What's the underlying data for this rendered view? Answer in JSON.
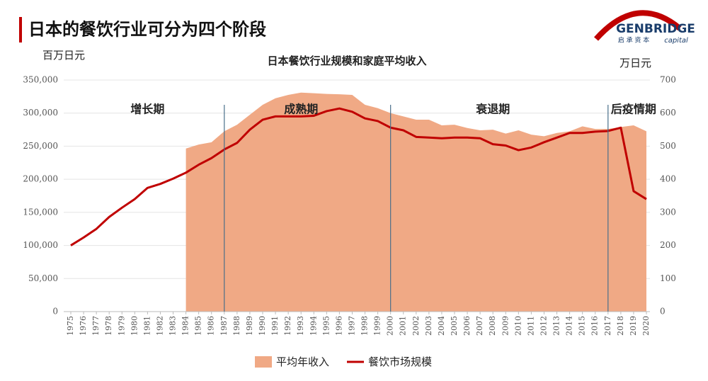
{
  "header": {
    "title": "日本的餐饮行业可分为四个阶段",
    "logo": "GENBRIDGE",
    "logo_sub": "启 承 资 本",
    "logo_sub2": "capital"
  },
  "chart_data": {
    "type": "line",
    "title": "日本餐饮行业规模和家庭平均收入",
    "y_label": "百万日元",
    "y2_label": "万日元",
    "categories": [
      "1975",
      "1976",
      "1977",
      "1978",
      "1979",
      "1980",
      "1981",
      "1982",
      "1983",
      "1984",
      "1985",
      "1986",
      "1987",
      "1988",
      "1989",
      "1990",
      "1991",
      "1992",
      "1993",
      "1994",
      "1995",
      "1996",
      "1997",
      "1998",
      "1999",
      "2000",
      "2001",
      "2002",
      "2003",
      "2004",
      "2005",
      "2006",
      "2007",
      "2008",
      "2009",
      "2010",
      "2011",
      "2012",
      "2013",
      "2014",
      "2015",
      "2016",
      "2017",
      "2018",
      "2019",
      "2020"
    ],
    "series": [
      {
        "name": "平均年收入",
        "type": "area",
        "axis": "y2",
        "color": "#f0a985",
        "values": [
          null,
          null,
          null,
          null,
          null,
          null,
          null,
          null,
          null,
          493,
          505,
          512,
          545,
          565,
          595,
          625,
          645,
          655,
          662,
          660,
          658,
          657,
          655,
          625,
          615,
          600,
          590,
          580,
          580,
          563,
          565,
          555,
          548,
          550,
          538,
          548,
          535,
          530,
          540,
          545,
          560,
          552,
          552,
          558,
          563,
          545
        ]
      },
      {
        "name": "餐饮市场规模",
        "type": "line",
        "color": "#c00000",
        "values": [
          100000,
          112000,
          125000,
          143000,
          157000,
          170000,
          187000,
          193000,
          201000,
          210000,
          222000,
          232000,
          245000,
          255000,
          275000,
          290000,
          295000,
          295000,
          295000,
          296000,
          303000,
          307000,
          302000,
          292000,
          288000,
          278000,
          274000,
          264000,
          263000,
          262000,
          263000,
          263000,
          262000,
          253000,
          251000,
          244000,
          248000,
          256000,
          263000,
          270000,
          270000,
          272000,
          273000,
          278000,
          182000,
          170000
        ]
      }
    ],
    "ylim": [
      0,
      350000
    ],
    "yticks": [
      0,
      {
        "value": 50000,
        "label": "50,000"
      },
      {
        "value": 100000,
        "label": "100,000"
      },
      {
        "value": 150000,
        "label": "150,000"
      },
      {
        "value": 200000,
        "label": "200,000"
      },
      {
        "value": 250000,
        "label": "250,000"
      },
      {
        "value": 300000,
        "label": "300,000"
      },
      {
        "value": 350000,
        "label": "350,000"
      }
    ],
    "y2lim": [
      0,
      700
    ],
    "y2ticks": [
      0,
      100,
      200,
      300,
      400,
      500,
      600,
      700
    ],
    "grid": true,
    "legend": "bottom",
    "phases": [
      {
        "label": "增长期",
        "at": "1981"
      },
      {
        "label": "成熟期",
        "at": "1993"
      },
      {
        "label": "衰退期",
        "at": "2008"
      },
      {
        "label": "后疫情期",
        "at": "2019"
      }
    ],
    "dividers": [
      "1987",
      "2000",
      "2017"
    ]
  }
}
